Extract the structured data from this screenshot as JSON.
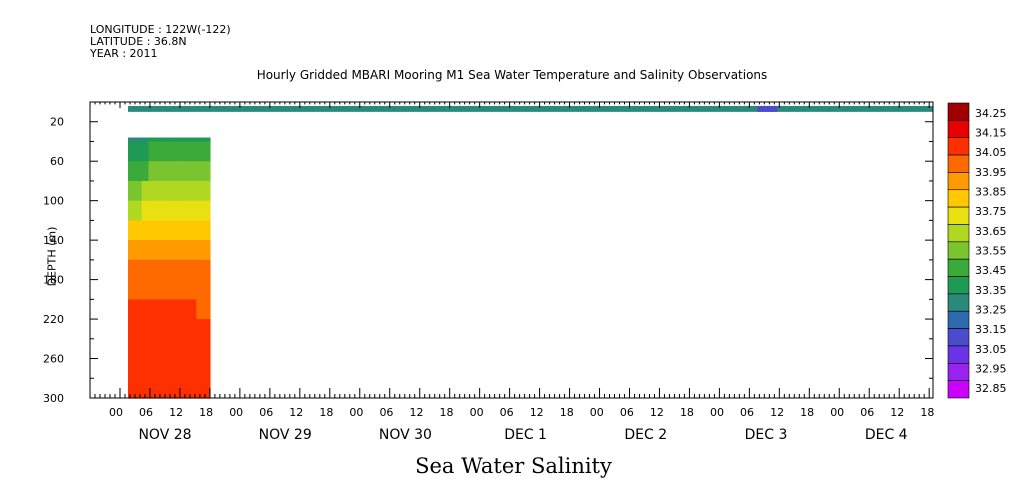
{
  "header": {
    "longitude": "LONGITUDE : 122W(-122)",
    "latitude": "LATITUDE : 36.8N",
    "year": "YEAR : 2011"
  },
  "chart_data": {
    "type": "heatmap",
    "title": "Hourly Gridded MBARI Mooring M1 Sea Water Temperature and Salinity Observations",
    "bottom_title": "Sea Water Salinity",
    "ylabel": "DEPTH (m)",
    "y_ticks": [
      20,
      60,
      100,
      140,
      180,
      220,
      260,
      300
    ],
    "ylim": [
      0,
      300
    ],
    "x_range_hours": [
      0,
      168
    ],
    "x_hour_ticks": [
      "00",
      "06",
      "12",
      "18",
      "00",
      "06",
      "12",
      "18",
      "00",
      "06",
      "12",
      "18",
      "00",
      "06",
      "12",
      "18",
      "00",
      "06",
      "12",
      "18",
      "00",
      "06",
      "12",
      "18",
      "00",
      "06",
      "12",
      "18"
    ],
    "day_labels": [
      "NOV 28",
      "NOV 29",
      "NOV 30",
      "DEC 1",
      "DEC 2",
      "DEC 3",
      "DEC 4"
    ],
    "colorbar": {
      "levels": [
        32.85,
        32.95,
        33.05,
        33.15,
        33.25,
        33.35,
        33.45,
        33.55,
        33.65,
        33.75,
        33.85,
        33.95,
        34.05,
        34.15,
        34.25
      ],
      "labels": [
        "34.25",
        "34.15",
        "34.05",
        "33.95",
        "33.85",
        "33.75",
        "33.65",
        "33.55",
        "33.45",
        "33.35",
        "33.25",
        "33.15",
        "33.05",
        "32.95",
        "32.85"
      ],
      "colors": [
        "#cc00ff",
        "#9a22ee",
        "#6a34e6",
        "#4a4ccc",
        "#2e6ab0",
        "#2a8a7a",
        "#1e9a55",
        "#3aaa3a",
        "#7ac430",
        "#b0d820",
        "#e8e010",
        "#ffc800",
        "#ff9a00",
        "#ff6a00",
        "#ff3000",
        "#e80000",
        "#a00000"
      ]
    },
    "surface_band": {
      "depth_m": [
        4,
        10
      ],
      "hours": [
        0,
        168
      ],
      "value": 33.28,
      "low_patch_hours": [
        126,
        130
      ],
      "low_patch_value": 33.05
    },
    "profile": {
      "hours": [
        0,
        12
      ],
      "depth_start_m": 36,
      "depth_end_m": 300,
      "depths": [
        40,
        60,
        80,
        100,
        120,
        140,
        160,
        180,
        200,
        220,
        240,
        260,
        280,
        300
      ],
      "values_left": [
        33.33,
        33.42,
        33.52,
        33.62,
        33.73,
        33.85,
        33.96,
        34.06,
        34.1,
        34.15,
        34.16,
        34.17,
        34.17,
        34.17
      ],
      "values_center": [
        33.38,
        33.5,
        33.6,
        33.72,
        33.82,
        33.93,
        34.02,
        34.08,
        34.13,
        34.18,
        34.22,
        34.25,
        34.22,
        34.18
      ],
      "values_right": [
        33.35,
        33.45,
        33.56,
        33.66,
        33.77,
        33.88,
        33.98,
        34.06,
        34.1,
        34.14,
        34.15,
        34.16,
        34.16,
        34.16
      ]
    }
  }
}
